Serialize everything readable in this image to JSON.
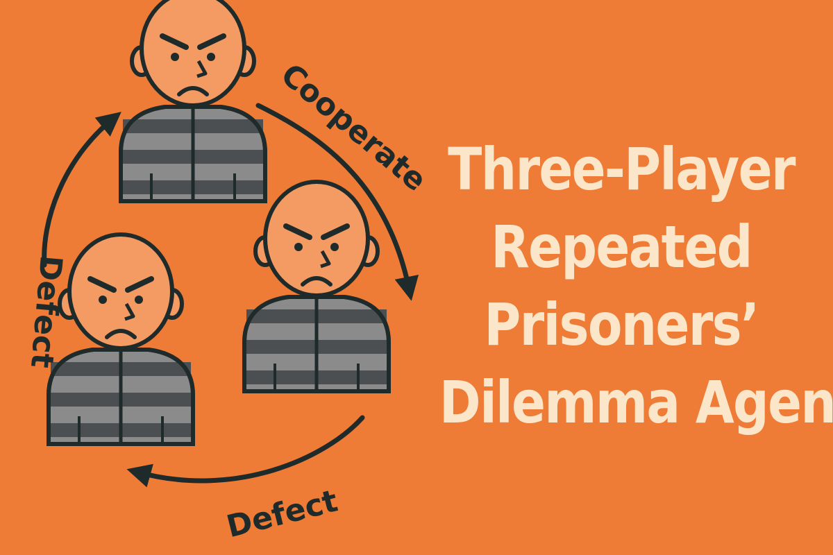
{
  "colors": {
    "background": "#EE7B36",
    "title": "#FBE6C9",
    "ink": "#1F2B2A",
    "skin": "#F49A63",
    "stripe_dark": "#4C4F52",
    "stripe_light": "#8B8B8B"
  },
  "title_lines": [
    "Three-Player",
    "Repeated",
    "Prisoners’",
    "Dilemma Agent"
  ],
  "actions": {
    "top_to_right": "Cooperate",
    "right_to_left": "Defect",
    "left_to_top": "Defect"
  },
  "players": [
    {
      "id": "top",
      "icon": "prisoner-icon"
    },
    {
      "id": "right",
      "icon": "prisoner-icon"
    },
    {
      "id": "left",
      "icon": "prisoner-icon"
    }
  ]
}
